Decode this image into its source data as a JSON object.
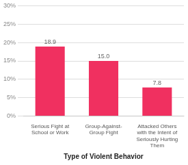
{
  "chart_data": {
    "type": "bar",
    "categories": [
      "Serious Fight at\nSchool or Work",
      "Group-Against-\nGroup Fight",
      "Attacked Others\nwith the Intent of\nSeriously Hurting\nThem"
    ],
    "values": [
      18.9,
      15.0,
      7.8
    ],
    "value_labels": [
      "18.9",
      "15.0",
      "7.8"
    ],
    "data_labels": true,
    "color": "#f03060",
    "xlabel": "Type of Violent Behavior",
    "ylim": [
      0,
      30
    ],
    "yticks": [
      {
        "value": 0,
        "label": "0%"
      },
      {
        "value": 5,
        "label": "5%"
      },
      {
        "value": 10,
        "label": "10%"
      },
      {
        "value": 15,
        "label": "15%"
      },
      {
        "value": 20,
        "label": "20%"
      },
      {
        "value": 25,
        "label": "25%"
      },
      {
        "value": 30,
        "label": "30%"
      }
    ],
    "grid": true
  }
}
